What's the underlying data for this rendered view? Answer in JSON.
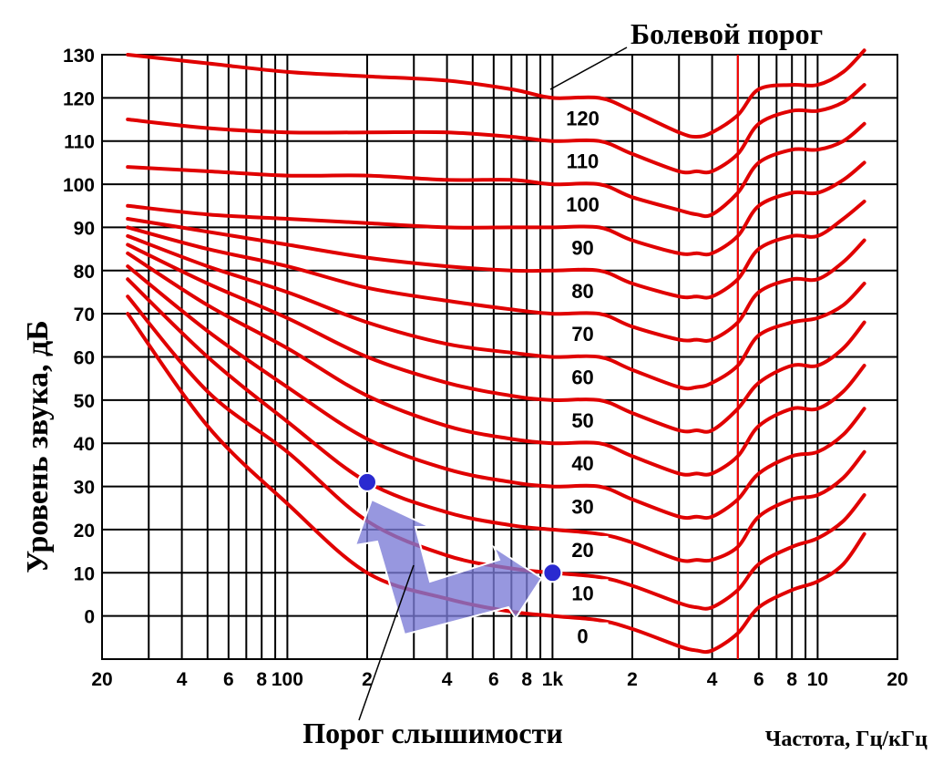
{
  "chart_data": {
    "type": "line",
    "title": "",
    "ylabel": "Уровень звука, дБ",
    "xlabel": "Частота, Гц/кГц",
    "x_scale": "log",
    "xlim": [
      20,
      20000
    ],
    "ylim": [
      -10,
      130
    ],
    "grid": true,
    "y_ticks": [
      0,
      10,
      20,
      30,
      40,
      50,
      60,
      70,
      80,
      90,
      100,
      110,
      120,
      130
    ],
    "y_tick_labels": [
      "0",
      "10",
      "20",
      "30",
      "40",
      "50",
      "60",
      "70",
      "80",
      "90",
      "100",
      "110",
      "120",
      "130"
    ],
    "x_tick_labels": [
      {
        "x": 20,
        "label": "20"
      },
      {
        "x": 40,
        "label": "4"
      },
      {
        "x": 60,
        "label": "6"
      },
      {
        "x": 80,
        "label": "8"
      },
      {
        "x": 100,
        "label": "100"
      },
      {
        "x": 200,
        "label": "2"
      },
      {
        "x": 400,
        "label": "4"
      },
      {
        "x": 600,
        "label": "6"
      },
      {
        "x": 800,
        "label": "8"
      },
      {
        "x": 1000,
        "label": "1k"
      },
      {
        "x": 2000,
        "label": "2"
      },
      {
        "x": 4000,
        "label": "4"
      },
      {
        "x": 6000,
        "label": "6"
      },
      {
        "x": 8000,
        "label": "8"
      },
      {
        "x": 10000,
        "label": "10"
      },
      {
        "x": 20000,
        "label": "20"
      }
    ],
    "x": [
      25,
      50,
      100,
      200,
      400,
      700,
      1000,
      1500,
      2000,
      3000,
      3500,
      4000,
      5000,
      6000,
      8000,
      10000,
      12500,
      15000
    ],
    "series": [
      {
        "name": "0",
        "values": [
          70,
          44,
          26,
          10,
          4,
          1,
          0,
          -1,
          -3,
          -7,
          -8,
          -8,
          -4,
          2,
          6,
          8,
          12,
          19
        ]
      },
      {
        "name": "10",
        "values": [
          74,
          52,
          38,
          22,
          14,
          11,
          10,
          9,
          7,
          3,
          2,
          2,
          6,
          12,
          16,
          18,
          22,
          28
        ]
      },
      {
        "name": "20",
        "values": [
          78,
          60,
          45,
          31,
          24,
          21,
          20,
          19,
          17,
          13,
          13,
          13,
          16,
          23,
          27,
          28,
          32,
          38
        ]
      },
      {
        "name": "30",
        "values": [
          81,
          66,
          53,
          41,
          34,
          31,
          30,
          30,
          27,
          23,
          23,
          23,
          27,
          33,
          37,
          38,
          42,
          48
        ]
      },
      {
        "name": "40",
        "values": [
          84,
          72,
          62,
          51,
          44,
          41,
          40,
          40,
          37,
          33,
          33,
          33,
          37,
          44,
          48,
          48,
          52,
          58
        ]
      },
      {
        "name": "50",
        "values": [
          86,
          77,
          69,
          60,
          54,
          51,
          50,
          50,
          47,
          43,
          43,
          43,
          48,
          54,
          58,
          58,
          62,
          68
        ]
      },
      {
        "name": "60",
        "values": [
          88,
          81,
          75,
          68,
          63,
          61,
          60,
          60,
          57,
          53,
          53,
          54,
          58,
          65,
          68,
          69,
          72,
          77
        ]
      },
      {
        "name": "70",
        "values": [
          90,
          85,
          81,
          76,
          73,
          71,
          70,
          70,
          67,
          64,
          64,
          64,
          68,
          75,
          78,
          78,
          82,
          87
        ]
      },
      {
        "name": "80",
        "values": [
          92,
          89,
          86,
          83,
          81,
          80,
          80,
          80,
          77,
          74,
          74,
          74,
          78,
          85,
          88,
          88,
          92,
          96
        ]
      },
      {
        "name": "90",
        "values": [
          95,
          93,
          92,
          91,
          90,
          90,
          90,
          90,
          87,
          84,
          84,
          84,
          88,
          95,
          98,
          98,
          101,
          105
        ]
      },
      {
        "name": "100",
        "values": [
          104,
          103,
          102,
          102,
          101,
          101,
          100,
          100,
          97,
          94,
          93,
          93,
          98,
          105,
          108,
          108,
          110,
          114
        ]
      },
      {
        "name": "110",
        "values": [
          115,
          113,
          112,
          112,
          112,
          111,
          110,
          110,
          107,
          103,
          103,
          103,
          107,
          114,
          117,
          117,
          119,
          123
        ]
      },
      {
        "name": "120",
        "values": [
          130,
          128,
          126,
          125,
          124,
          122,
          120,
          120,
          117,
          112,
          111,
          112,
          116,
          122,
          123,
          123,
          126,
          131
        ]
      }
    ],
    "marker_line": {
      "x": 5000,
      "color": "#ff0000"
    },
    "highlight_points": [
      {
        "x": 200,
        "y": 31
      },
      {
        "x": 1000,
        "y": 10
      }
    ],
    "annotations": [
      {
        "text": "Болевой порог"
      },
      {
        "text": "Порог слышимости"
      }
    ],
    "colors": {
      "curves": "#e00000",
      "grid": "#000000",
      "arrow_fill": "#7a7ad6",
      "dot": "#2a2ad0"
    }
  }
}
